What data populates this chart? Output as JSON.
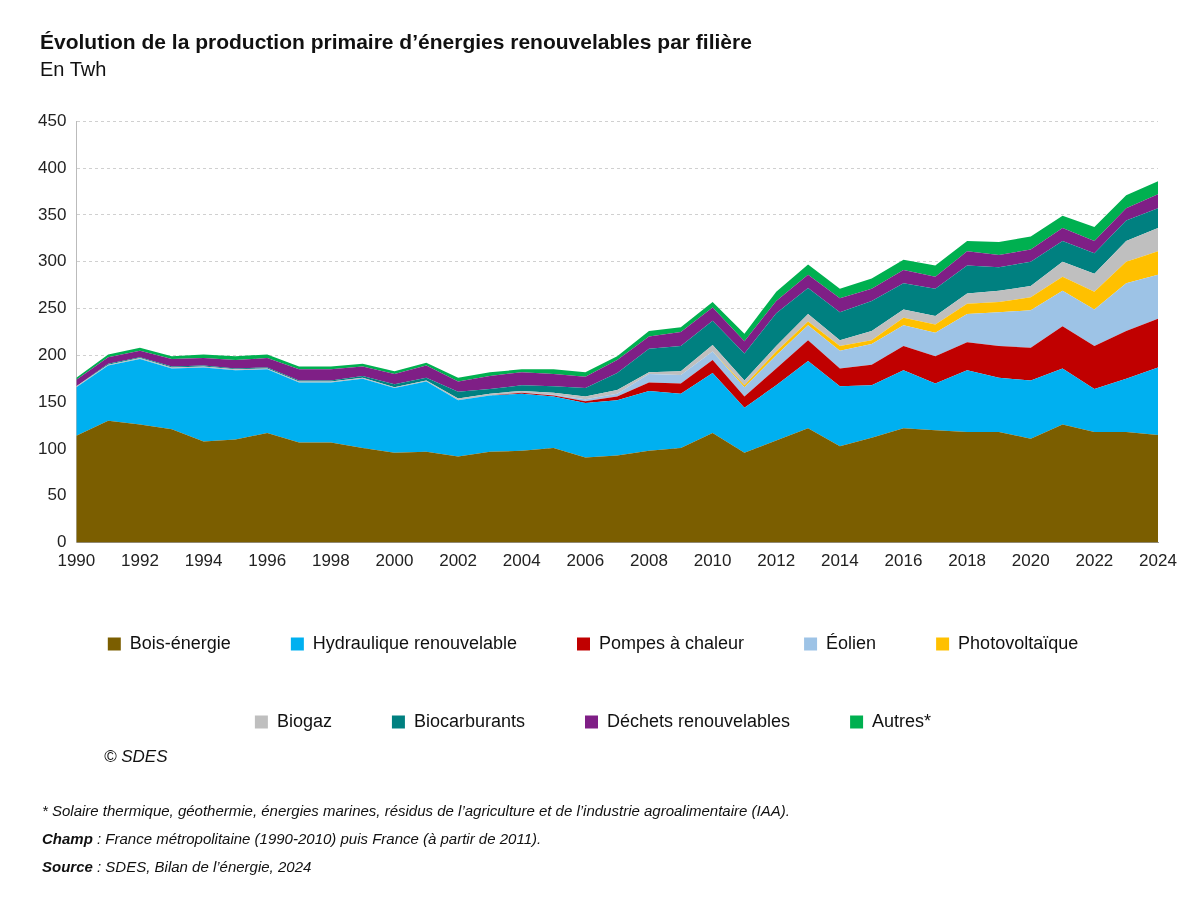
{
  "chart_data": {
    "type": "area",
    "title": "Évolution de la production primaire d’énergies renouvelables par filière",
    "subtitle": "En Twh",
    "x": [
      1990,
      1991,
      1992,
      1993,
      1994,
      1995,
      1996,
      1997,
      1998,
      1999,
      2000,
      2001,
      2002,
      2003,
      2004,
      2005,
      2006,
      2007,
      2008,
      2009,
      2010,
      2011,
      2012,
      2013,
      2014,
      2015,
      2016,
      2017,
      2018,
      2019,
      2020,
      2021,
      2022,
      2023,
      2024
    ],
    "xlim": [
      1990,
      2024
    ],
    "xticks": [
      1990,
      1992,
      1994,
      1996,
      1998,
      2000,
      2002,
      2004,
      2006,
      2008,
      2010,
      2012,
      2014,
      2016,
      2018,
      2020,
      2022,
      2024
    ],
    "ylim": [
      0,
      450
    ],
    "yticks": [
      0,
      50,
      100,
      150,
      200,
      250,
      300,
      350,
      400,
      450
    ],
    "stacked": true,
    "grid": "y",
    "legend": "bottom",
    "series": [
      {
        "name": "Bois-énergie",
        "color": "#7b5e00",
        "values": [
          114,
          130,
          126,
          121,
          108,
          110,
          117,
          107,
          107,
          101,
          96,
          97,
          92,
          97,
          98,
          101,
          91,
          93,
          98,
          101,
          117,
          96,
          109,
          122,
          103,
          112,
          122,
          120,
          118,
          118,
          111,
          126,
          118,
          118,
          115
        ]
      },
      {
        "name": "Hydraulique renouvelable",
        "color": "#00b0f0",
        "values": [
          52,
          59,
          70,
          65,
          79,
          74,
          68,
          64,
          64,
          74,
          69,
          75,
          60,
          60,
          61,
          55,
          58,
          59,
          64,
          58,
          64,
          48,
          59,
          72,
          64,
          56,
          62,
          50,
          66,
          58,
          62,
          60,
          46,
          57,
          72
        ]
      },
      {
        "name": "Pompes à chaleur",
        "color": "#c00000",
        "values": [
          0,
          0,
          0,
          0,
          0,
          0,
          0,
          0,
          0,
          0,
          0,
          0,
          0,
          0,
          1,
          1,
          2,
          4,
          9,
          11,
          14,
          12,
          18,
          22,
          19,
          22,
          26,
          29,
          30,
          34,
          35,
          45,
          46,
          51,
          52
        ]
      },
      {
        "name": "Éolien",
        "color": "#9dc3e6",
        "values": [
          0,
          0,
          0,
          0,
          0,
          0,
          0,
          0,
          0,
          0,
          0,
          0,
          0,
          0,
          0,
          1,
          2,
          3,
          9,
          9,
          9,
          10,
          14,
          16,
          19,
          22,
          22,
          25,
          30,
          36,
          40,
          38,
          39,
          51,
          47
        ]
      },
      {
        "name": "Photovoltaïque",
        "color": "#ffc000",
        "values": [
          0,
          0,
          0,
          0,
          0,
          0,
          0,
          0,
          0,
          0,
          0,
          0,
          0,
          0,
          0,
          0,
          0,
          0,
          0,
          0,
          0,
          2,
          4,
          4,
          5,
          4,
          8,
          9,
          11,
          11,
          14,
          15,
          19,
          23,
          25
        ]
      },
      {
        "name": "Biogaz",
        "color": "#bfbfbf",
        "values": [
          1,
          1,
          1,
          1,
          1,
          1,
          1,
          1,
          1,
          1,
          1,
          1,
          2,
          2,
          2,
          2,
          3,
          4,
          2,
          4,
          7,
          5,
          6,
          8,
          6,
          10,
          9,
          9,
          11,
          12,
          12,
          16,
          19,
          22,
          25
        ]
      },
      {
        "name": "Biocarburants",
        "color": "#008080",
        "values": [
          0,
          1,
          1,
          1,
          1,
          1,
          1,
          1,
          1,
          2,
          3,
          3,
          7,
          5,
          6,
          7,
          9,
          18,
          25,
          27,
          26,
          29,
          35,
          28,
          30,
          32,
          28,
          29,
          30,
          25,
          26,
          22,
          22,
          22,
          21
        ]
      },
      {
        "name": "Déchets renouvelables",
        "color": "#7f1f86",
        "values": [
          7,
          7,
          7,
          8,
          8,
          9,
          10,
          12,
          12,
          10,
          11,
          13,
          11,
          14,
          14,
          13,
          12,
          14,
          13,
          15,
          14,
          13,
          13,
          14,
          15,
          13,
          14,
          13,
          15,
          13,
          13,
          14,
          13,
          13,
          15
        ]
      },
      {
        "name": "Autres*",
        "color": "#00b050",
        "values": [
          2,
          3,
          3,
          3,
          4,
          4,
          4,
          3,
          3,
          3,
          3,
          3,
          4,
          4,
          3,
          5,
          5,
          4,
          6,
          5,
          6,
          8,
          10,
          11,
          10,
          11,
          11,
          12,
          11,
          14,
          14,
          13,
          15,
          14,
          14
        ]
      }
    ],
    "annotations": [
      "© SDES",
      "* Solaire thermique, géothermie, énergies marines, résidus de l’agriculture et de l’industrie agroalimentaire (IAA).",
      "Champ : France métropolitaine (1990-2010) puis France (à partir de 2011).",
      "Source : SDES, Bilan de l’énergie, 2024"
    ]
  }
}
